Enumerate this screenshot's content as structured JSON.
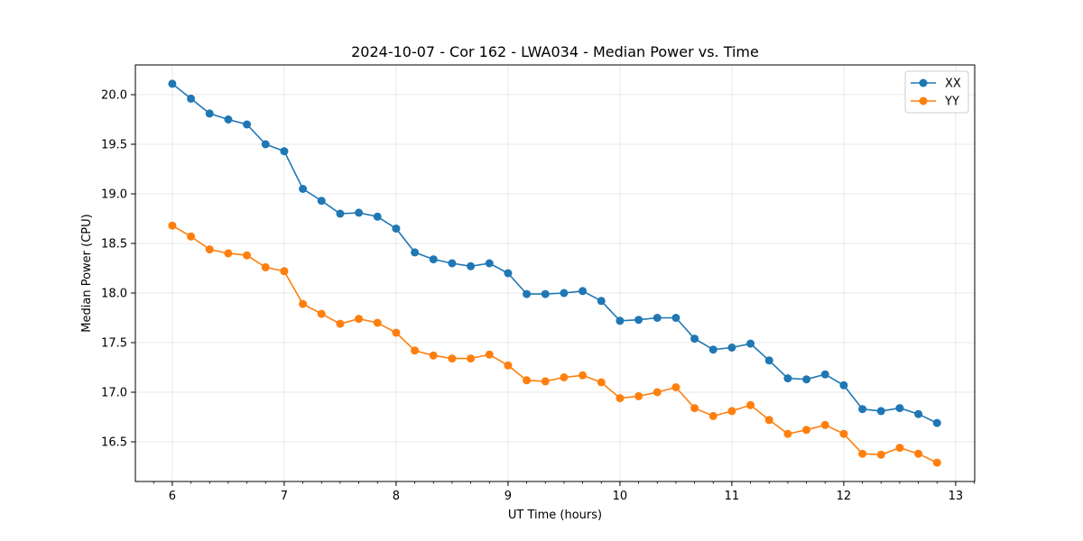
{
  "chart_data": {
    "type": "line",
    "title": "2024-10-07 - Cor 162 - LWA034 - Median Power vs. Time",
    "xlabel": "UT Time (hours)",
    "ylabel": "Median Power (CPU)",
    "xlim": [
      5.67,
      13.17
    ],
    "ylim": [
      16.1,
      20.3
    ],
    "xticks": [
      6,
      7,
      8,
      9,
      10,
      11,
      12,
      13
    ],
    "yticks": [
      16.5,
      17.0,
      17.5,
      18.0,
      18.5,
      19.0,
      19.5,
      20.0
    ],
    "ytick_format": 1,
    "grid": true,
    "legend_position": "top-right",
    "x": [
      6.0,
      6.1667,
      6.3333,
      6.5,
      6.6667,
      6.8333,
      7.0,
      7.1667,
      7.3333,
      7.5,
      7.6667,
      7.8333,
      8.0,
      8.1667,
      8.3333,
      8.5,
      8.6667,
      8.8333,
      9.0,
      9.1667,
      9.3333,
      9.5,
      9.6667,
      9.8333,
      10.0,
      10.1667,
      10.3333,
      10.5,
      10.6667,
      10.8333,
      11.0,
      11.1667,
      11.3333,
      11.5,
      11.6667,
      11.8333,
      12.0,
      12.1667,
      12.3333,
      12.5,
      12.6667,
      12.8333
    ],
    "series": [
      {
        "name": "XX",
        "color": "#1f77b4",
        "values": [
          20.11,
          19.96,
          19.81,
          19.75,
          19.7,
          19.5,
          19.43,
          19.05,
          18.93,
          18.8,
          18.81,
          18.77,
          18.65,
          18.41,
          18.34,
          18.3,
          18.27,
          18.3,
          18.2,
          17.99,
          17.99,
          18.0,
          18.02,
          17.92,
          17.72,
          17.73,
          17.75,
          17.75,
          17.54,
          17.43,
          17.45,
          17.49,
          17.32,
          17.14,
          17.13,
          17.18,
          17.07,
          16.83,
          16.81,
          16.84,
          16.78,
          16.69
        ]
      },
      {
        "name": "YY",
        "color": "#ff7f0e",
        "values": [
          18.68,
          18.57,
          18.44,
          18.4,
          18.38,
          18.26,
          18.22,
          17.89,
          17.79,
          17.69,
          17.74,
          17.7,
          17.6,
          17.42,
          17.37,
          17.34,
          17.34,
          17.38,
          17.27,
          17.12,
          17.11,
          17.15,
          17.17,
          17.1,
          16.94,
          16.96,
          17.0,
          17.05,
          16.84,
          16.76,
          16.81,
          16.87,
          16.72,
          16.58,
          16.62,
          16.67,
          16.58,
          16.38,
          16.37,
          16.44,
          16.38,
          16.29
        ]
      }
    ]
  }
}
